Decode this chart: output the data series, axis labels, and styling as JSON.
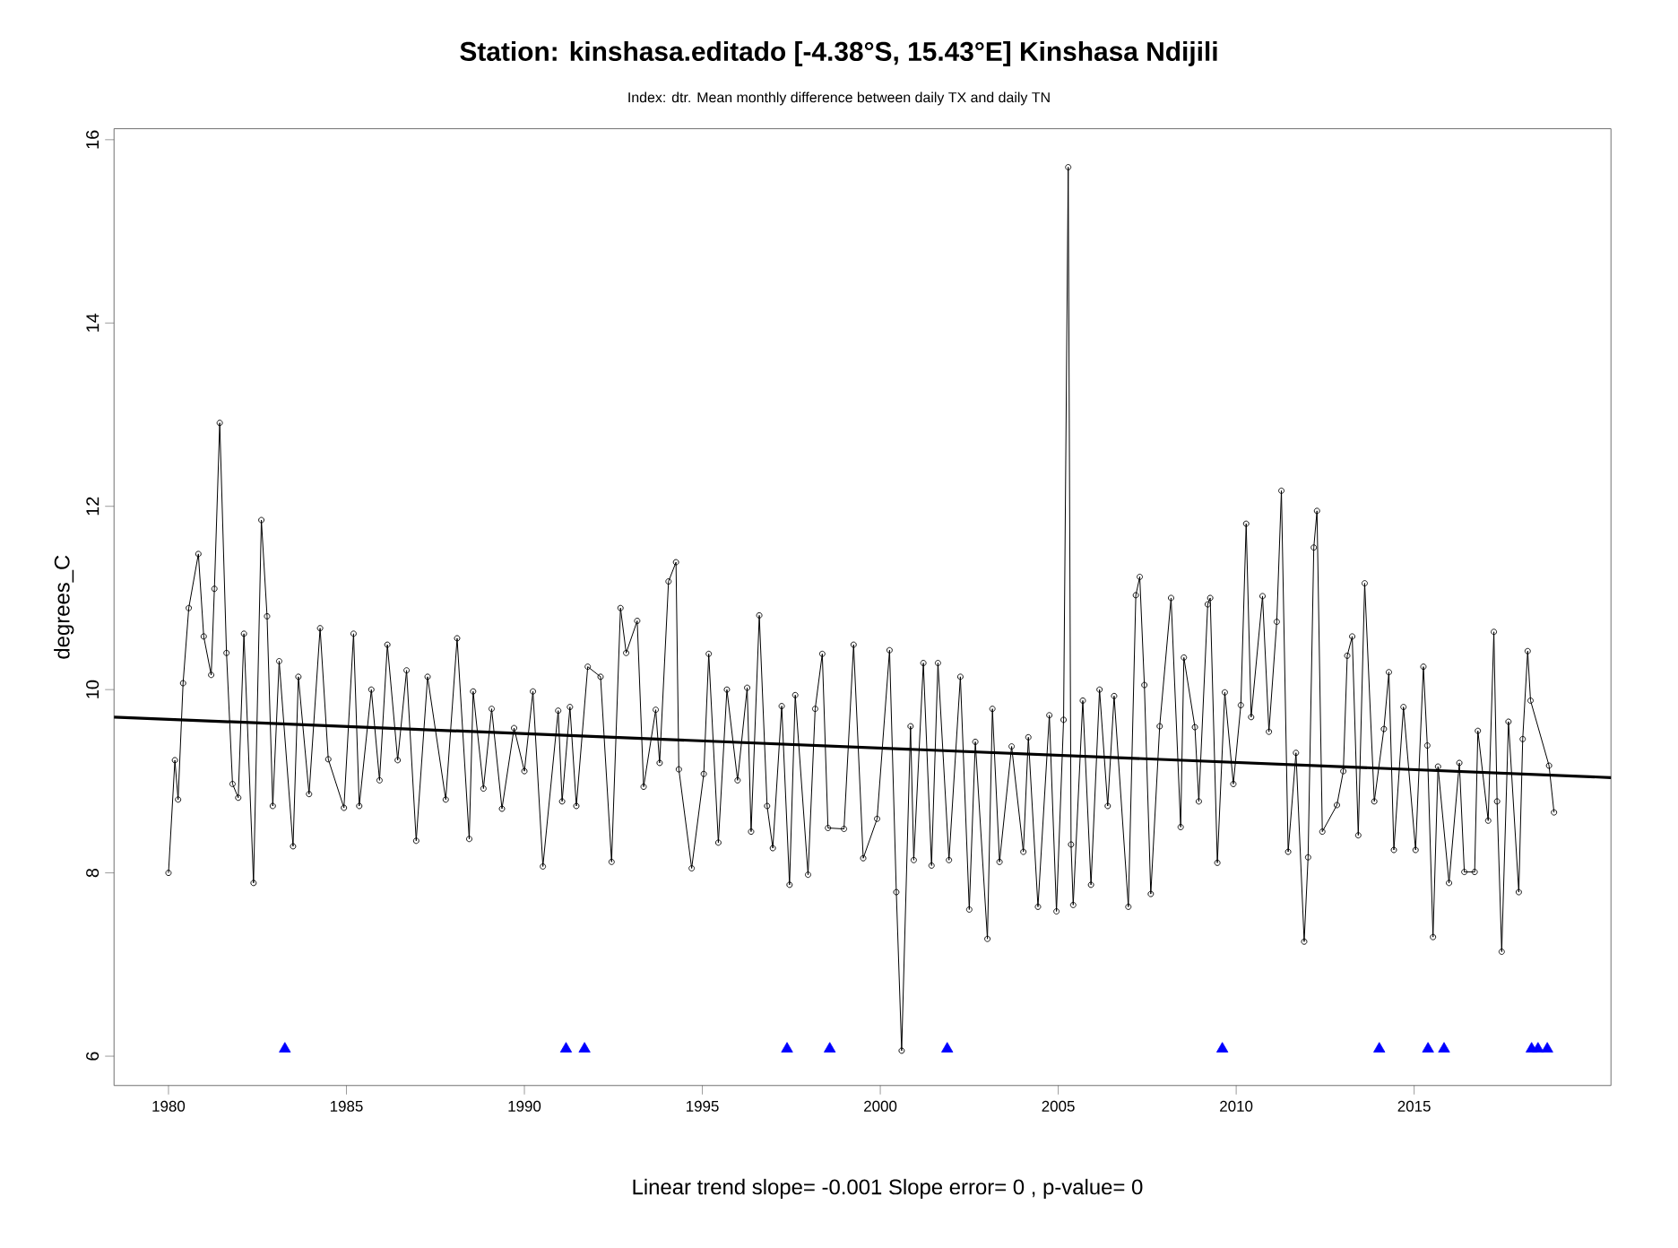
{
  "chart_data": {
    "type": "line",
    "title": "Station: kinshasa.editado [-4.38°S, 15.43°E] Kinshasa Ndijili",
    "subtitle": "Index: dtr. Mean monthly difference between daily TX and daily TN",
    "ylabel": "degrees_C",
    "annotations": [
      "Linear trend slope= -0.001    Slope error= 0 ,   p-value= 0"
    ],
    "xlim": [
      1978.47,
      2020.53
    ],
    "ylim": [
      5.68,
      16.12
    ],
    "xticks": [
      1980,
      1985,
      1990,
      1995,
      2000,
      2005,
      2010,
      2015
    ],
    "yticks": [
      6,
      8,
      10,
      12,
      14,
      16
    ],
    "grid": false,
    "series": [
      {
        "color": "#000000",
        "marker": "circle",
        "x": [
          1980.0,
          1980.18,
          1980.27,
          1980.41,
          1980.57,
          1980.84,
          1980.99,
          1981.2,
          1981.29,
          1981.44,
          1981.63,
          1981.8,
          1981.96,
          1982.12,
          1982.39,
          1982.61,
          1982.77,
          1982.93,
          1983.11,
          1983.5,
          1983.65,
          1983.95,
          1984.26,
          1984.49,
          1984.93,
          1985.2,
          1985.36,
          1985.7,
          1985.93,
          1986.15,
          1986.44,
          1986.69,
          1986.96,
          1987.28,
          1987.79,
          1988.11,
          1988.45,
          1988.56,
          1988.85,
          1989.08,
          1989.37,
          1989.71,
          1990.0,
          1990.24,
          1990.52,
          1990.95,
          1991.06,
          1991.28,
          1991.46,
          1991.78,
          1992.14,
          1992.45,
          1992.7,
          1992.86,
          1993.17,
          1993.35,
          1993.69,
          1993.8,
          1994.05,
          1994.26,
          1994.34,
          1994.7,
          1995.04,
          1995.18,
          1995.45,
          1995.69,
          1995.99,
          1996.26,
          1996.37,
          1996.6,
          1996.82,
          1996.98,
          1997.23,
          1997.45,
          1997.61,
          1997.97,
          1998.17,
          1998.37,
          1998.53,
          1998.98,
          1999.25,
          1999.52,
          1999.91,
          2000.26,
          2000.45,
          2000.6,
          2000.85,
          2000.94,
          2001.21,
          2001.44,
          2001.62,
          2001.93,
          2002.25,
          2002.5,
          2002.67,
          2003.01,
          2003.15,
          2003.35,
          2003.69,
          2004.02,
          2004.16,
          2004.43,
          2004.75,
          2004.95,
          2005.15,
          2005.28,
          2005.36,
          2005.42,
          2005.69,
          2005.92,
          2006.16,
          2006.39,
          2006.57,
          2006.97,
          2007.18,
          2007.29,
          2007.42,
          2007.6,
          2007.85,
          2008.17,
          2008.44,
          2008.53,
          2008.84,
          2008.95,
          2009.2,
          2009.27,
          2009.47,
          2009.68,
          2009.92,
          2010.13,
          2010.28,
          2010.42,
          2010.74,
          2010.92,
          2011.14,
          2011.27,
          2011.46,
          2011.68,
          2011.91,
          2012.02,
          2012.18,
          2012.27,
          2012.42,
          2012.83,
          2013.01,
          2013.12,
          2013.26,
          2013.43,
          2013.61,
          2013.88,
          2014.15,
          2014.29,
          2014.43,
          2014.7,
          2015.04,
          2015.26,
          2015.37,
          2015.53,
          2015.67,
          2015.98,
          2016.27,
          2016.41,
          2016.7,
          2016.79,
          2017.08,
          2017.24,
          2017.33,
          2017.46,
          2017.65,
          2017.94,
          2018.05,
          2018.19,
          2018.27,
          2018.79,
          2018.93
        ],
        "values": [
          8.0,
          9.23,
          8.8,
          10.07,
          10.89,
          11.48,
          10.58,
          10.16,
          11.1,
          12.91,
          10.4,
          8.97,
          8.82,
          10.61,
          7.89,
          11.85,
          10.8,
          8.73,
          10.31,
          8.29,
          10.14,
          8.86,
          10.67,
          9.24,
          8.71,
          10.61,
          8.73,
          10.0,
          9.01,
          10.49,
          9.23,
          10.21,
          8.35,
          10.14,
          8.8,
          10.56,
          8.37,
          9.98,
          8.92,
          9.79,
          8.7,
          9.58,
          9.11,
          9.98,
          8.07,
          9.77,
          8.78,
          9.81,
          8.73,
          10.25,
          10.14,
          8.12,
          10.89,
          10.4,
          10.75,
          8.94,
          9.78,
          9.2,
          11.18,
          11.39,
          9.13,
          8.05,
          9.08,
          10.39,
          8.33,
          10.0,
          9.01,
          10.02,
          8.45,
          10.81,
          8.73,
          8.27,
          9.82,
          7.87,
          9.94,
          7.98,
          9.79,
          10.39,
          8.49,
          8.48,
          10.49,
          8.16,
          8.59,
          10.43,
          7.79,
          6.06,
          9.6,
          8.14,
          10.29,
          8.08,
          10.29,
          8.14,
          10.14,
          7.6,
          9.43,
          7.28,
          9.79,
          8.12,
          9.38,
          8.23,
          9.48,
          7.63,
          9.72,
          7.58,
          9.67,
          15.7,
          8.31,
          7.65,
          9.88,
          7.87,
          10.0,
          8.73,
          9.93,
          7.63,
          11.03,
          11.23,
          10.05,
          7.77,
          9.6,
          11.0,
          8.5,
          10.35,
          9.59,
          8.78,
          10.93,
          11.0,
          8.11,
          9.97,
          8.97,
          9.83,
          11.81,
          9.7,
          11.02,
          9.54,
          10.74,
          12.17,
          8.23,
          9.31,
          7.25,
          8.17,
          11.55,
          11.95,
          8.45,
          8.74,
          9.11,
          10.37,
          10.58,
          8.41,
          11.16,
          8.78,
          9.57,
          10.19,
          8.25,
          9.81,
          8.25,
          10.25,
          9.39,
          7.3,
          9.16,
          7.89,
          9.2,
          8.01,
          8.01,
          9.55,
          8.57,
          10.63,
          8.78,
          7.14,
          9.65,
          7.79,
          9.46,
          10.42,
          9.88,
          9.17,
          8.66
        ]
      },
      {
        "color": "#000000",
        "marker": "none",
        "x": [
          1978.47,
          2020.53
        ],
        "values": [
          9.7,
          9.04
        ]
      },
      {
        "type": "scatter",
        "color": "#0000ff",
        "marker": "triangle",
        "x": [
          1983.27,
          1991.17,
          1991.69,
          1997.38,
          1998.58,
          2001.88,
          2009.61,
          2014.02,
          2015.39,
          2015.84,
          2018.3,
          2018.48,
          2018.74
        ],
        "values": [
          6.08,
          6.08,
          6.08,
          6.08,
          6.08,
          6.08,
          6.08,
          6.08,
          6.08,
          6.08,
          6.08,
          6.08,
          6.08
        ]
      }
    ]
  }
}
